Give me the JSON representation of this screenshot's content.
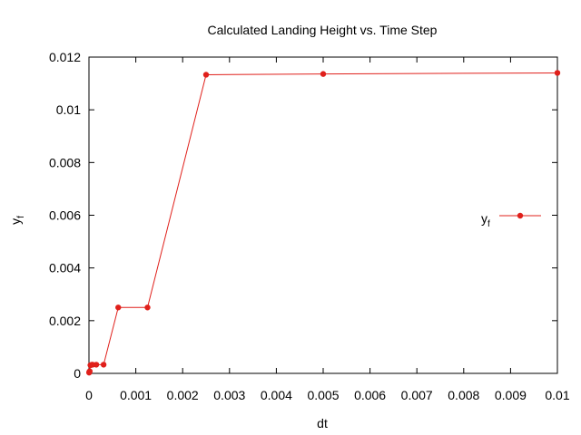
{
  "chart_data": {
    "type": "line",
    "title": "Calculated Landing Height vs. Time Step",
    "xlabel": "dt",
    "ylabel": {
      "base": "y",
      "sub": "f"
    },
    "xlim": [
      0,
      0.01
    ],
    "ylim": [
      0,
      0.012
    ],
    "xticks": [
      0,
      0.001,
      0.002,
      0.003,
      0.004,
      0.005,
      0.006,
      0.007,
      0.008,
      0.009,
      0.01
    ],
    "xtick_labels": [
      "0",
      "0.001",
      "0.002",
      "0.003",
      "0.004",
      "0.005",
      "0.006",
      "0.007",
      "0.008",
      "0.009",
      "0.01"
    ],
    "yticks": [
      0,
      0.002,
      0.004,
      0.006,
      0.008,
      0.01,
      0.012
    ],
    "ytick_labels": [
      "0",
      "0.002",
      "0.004",
      "0.006",
      "0.008",
      "0.01",
      "0.012"
    ],
    "grid": false,
    "legend_position": "right",
    "series": [
      {
        "name": "y_f",
        "legend_label": {
          "base": "y",
          "sub": "f"
        },
        "color": "#e0201b",
        "marker": "circle",
        "points": [
          [
            3.9e-06,
            3e-05
          ],
          [
            7.8e-06,
            5e-05
          ],
          [
            1.56e-05,
            8e-05
          ],
          [
            3.12e-05,
            0.00031
          ],
          [
            6.25e-05,
            0.00033
          ],
          [
            7.8e-05,
            0.00033
          ],
          [
            0.000156,
            0.00033
          ],
          [
            0.0003125,
            0.00033
          ],
          [
            0.000625,
            0.0025
          ],
          [
            0.00125,
            0.0025
          ],
          [
            0.0025,
            0.01133
          ],
          [
            0.005,
            0.01136
          ],
          [
            0.01,
            0.0114
          ]
        ]
      }
    ]
  }
}
